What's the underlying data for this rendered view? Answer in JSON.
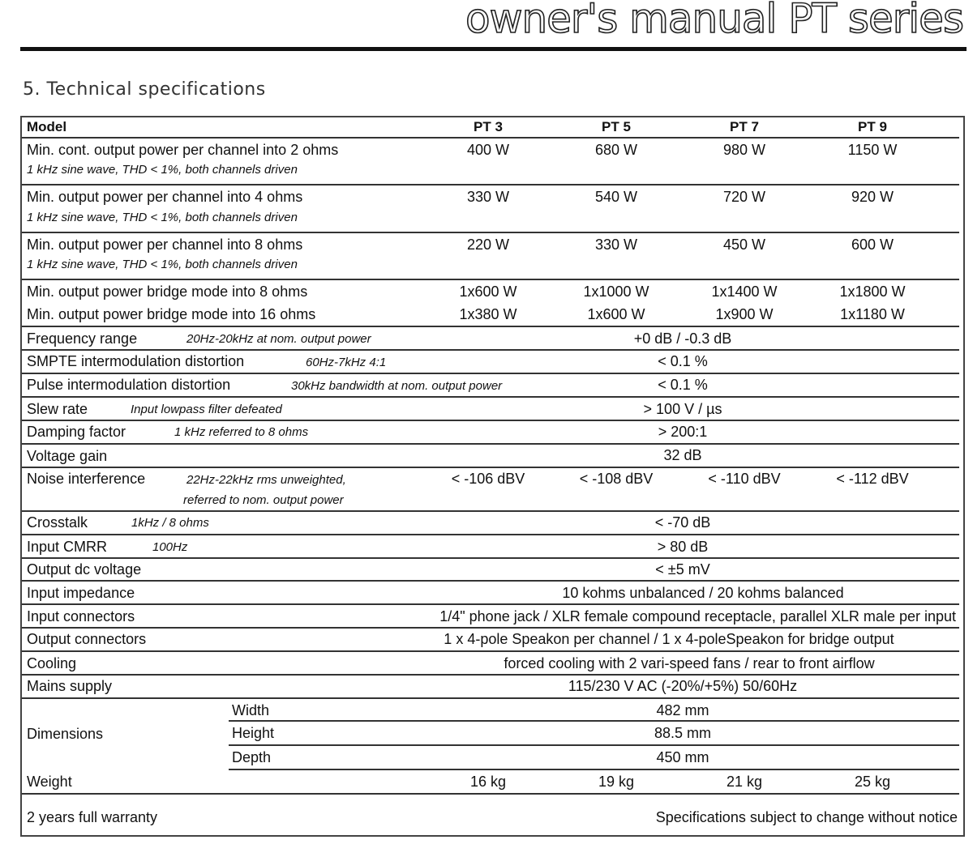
{
  "header": {
    "title": "owner's manual PT series",
    "section": "5. Technical specifications"
  },
  "table": {
    "model_label": "Model",
    "models": [
      "PT 3",
      "PT 5",
      "PT 7",
      "PT 9"
    ],
    "power_rows": [
      {
        "label": "Min. cont. output power per channel into  2 ohms",
        "note": "1 kHz sine wave, THD < 1%, both channels driven",
        "values": [
          "400 W",
          "680 W",
          "980 W",
          "1150 W"
        ]
      },
      {
        "label": "Min. output power per channel into 4 ohms",
        "note": "1 kHz sine wave, THD < 1%, both channels driven",
        "values": [
          "330 W",
          "540 W",
          "720 W",
          "920 W"
        ]
      },
      {
        "label": "Min. output power per channel into 8 ohms",
        "note": "1 kHz sine wave, THD < 1%, both channels driven",
        "values": [
          "220 W",
          "330 W",
          "450 W",
          "600 W"
        ]
      }
    ],
    "bridge_rows": [
      {
        "label": "Min. output power bridge mode into 8 ohms",
        "values": [
          "1x600 W",
          "1x1000 W",
          "1x1400 W",
          "1x1800 W"
        ]
      },
      {
        "label": "Min. output power bridge mode into 16 ohms",
        "values": [
          "1x380 W",
          "1x600 W",
          "1x900 W",
          "1x1180 W"
        ]
      }
    ],
    "freq": {
      "label": "Frequency range",
      "note": "20Hz-20kHz at nom. output power",
      "value": "+0 dB / -0.3 dB"
    },
    "smpte": {
      "label": "SMPTE intermodulation distortion",
      "note": "60Hz-7kHz 4:1",
      "value": "< 0.1 %"
    },
    "pulse": {
      "label": "Pulse intermodulation distortion",
      "note": "30kHz bandwidth at nom. output power",
      "value": "< 0.1 %"
    },
    "slew": {
      "label": "Slew rate",
      "note": "Input lowpass filter defeated",
      "value": "> 100 V / µs"
    },
    "damping": {
      "label": "Damping factor",
      "note": "1 kHz referred to 8 ohms",
      "value": "> 200:1"
    },
    "gain": {
      "label": "Voltage gain",
      "value": "32 dB"
    },
    "noise": {
      "label": "Noise interference",
      "note1": "22Hz-22kHz rms unweighted,",
      "note2": "referred to nom. output power",
      "values": [
        "< -106 dBV",
        "< -108 dBV",
        "< -110 dBV",
        "< -112 dBV"
      ]
    },
    "crosstalk": {
      "label": "Crosstalk",
      "note": "1kHz / 8 ohms",
      "value": "< -70 dB"
    },
    "cmrr": {
      "label": "Input CMRR",
      "note": "100Hz",
      "value": "> 80 dB"
    },
    "dc": {
      "label": "Output dc voltage",
      "value": "< ±5 mV"
    },
    "impedance": {
      "label": "Input impedance",
      "value": "10 kohms unbalanced / 20 kohms balanced"
    },
    "in_conn": {
      "label": "Input connectors",
      "value": "1/4\" phone jack / XLR female compound receptacle, parallel XLR male per input"
    },
    "out_conn": {
      "label": "Output connectors",
      "value": "1 x 4-pole Speakon per channel / 1 x 4-poleSpeakon for bridge output"
    },
    "cooling": {
      "label": "Cooling",
      "value": "forced cooling with 2 vari-speed fans / rear to front airflow"
    },
    "mains": {
      "label": "Mains supply",
      "value": "115/230 V AC (-20%/+5%) 50/60Hz"
    },
    "dimensions": {
      "label": "Dimensions",
      "width_label": "Width",
      "width": "482 mm",
      "height_label": "Height",
      "height": "88.5 mm",
      "depth_label": "Depth",
      "depth": "450 mm"
    },
    "weight": {
      "label": "Weight",
      "values": [
        "16 kg",
        "19 kg",
        "21 kg",
        "25 kg"
      ]
    },
    "footer": {
      "warranty": "2 years full warranty",
      "notice": "Specifications subject to change without notice"
    }
  }
}
